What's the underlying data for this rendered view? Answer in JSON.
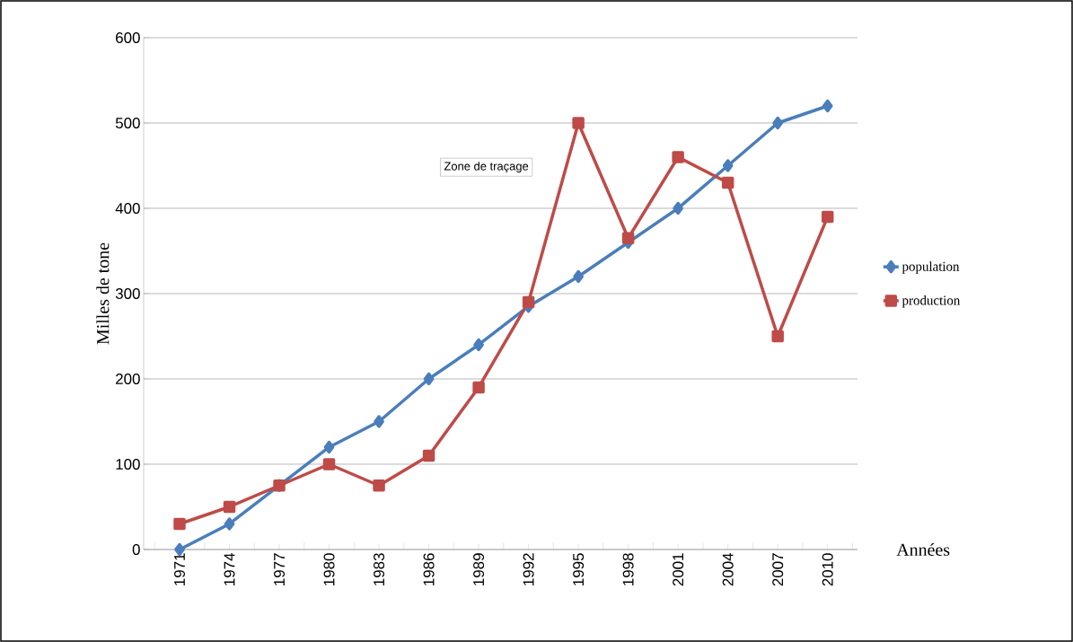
{
  "chart_data": {
    "type": "line",
    "xlabel": "Années",
    "ylabel": "Milles  de tone",
    "categories": [
      "1971",
      "1974",
      "1977",
      "1980",
      "1983",
      "1986",
      "1989",
      "1992",
      "1995",
      "1998",
      "2001",
      "2004",
      "2007",
      "2010"
    ],
    "series": [
      {
        "name": "population",
        "color": "#4a7ebb",
        "marker": "diamond",
        "values": [
          0,
          30,
          75,
          120,
          150,
          200,
          240,
          285,
          320,
          360,
          400,
          450,
          500,
          520
        ]
      },
      {
        "name": "production",
        "color": "#be4b48",
        "marker": "square",
        "values": [
          30,
          50,
          75,
          100,
          75,
          110,
          190,
          290,
          500,
          365,
          460,
          430,
          250,
          390
        ]
      }
    ],
    "ylim": [
      0,
      600
    ],
    "yticks": [
      0,
      100,
      200,
      300,
      400,
      500,
      600
    ],
    "grid": "y",
    "legend": "right",
    "annotations": [
      "Zone de traçage"
    ]
  }
}
